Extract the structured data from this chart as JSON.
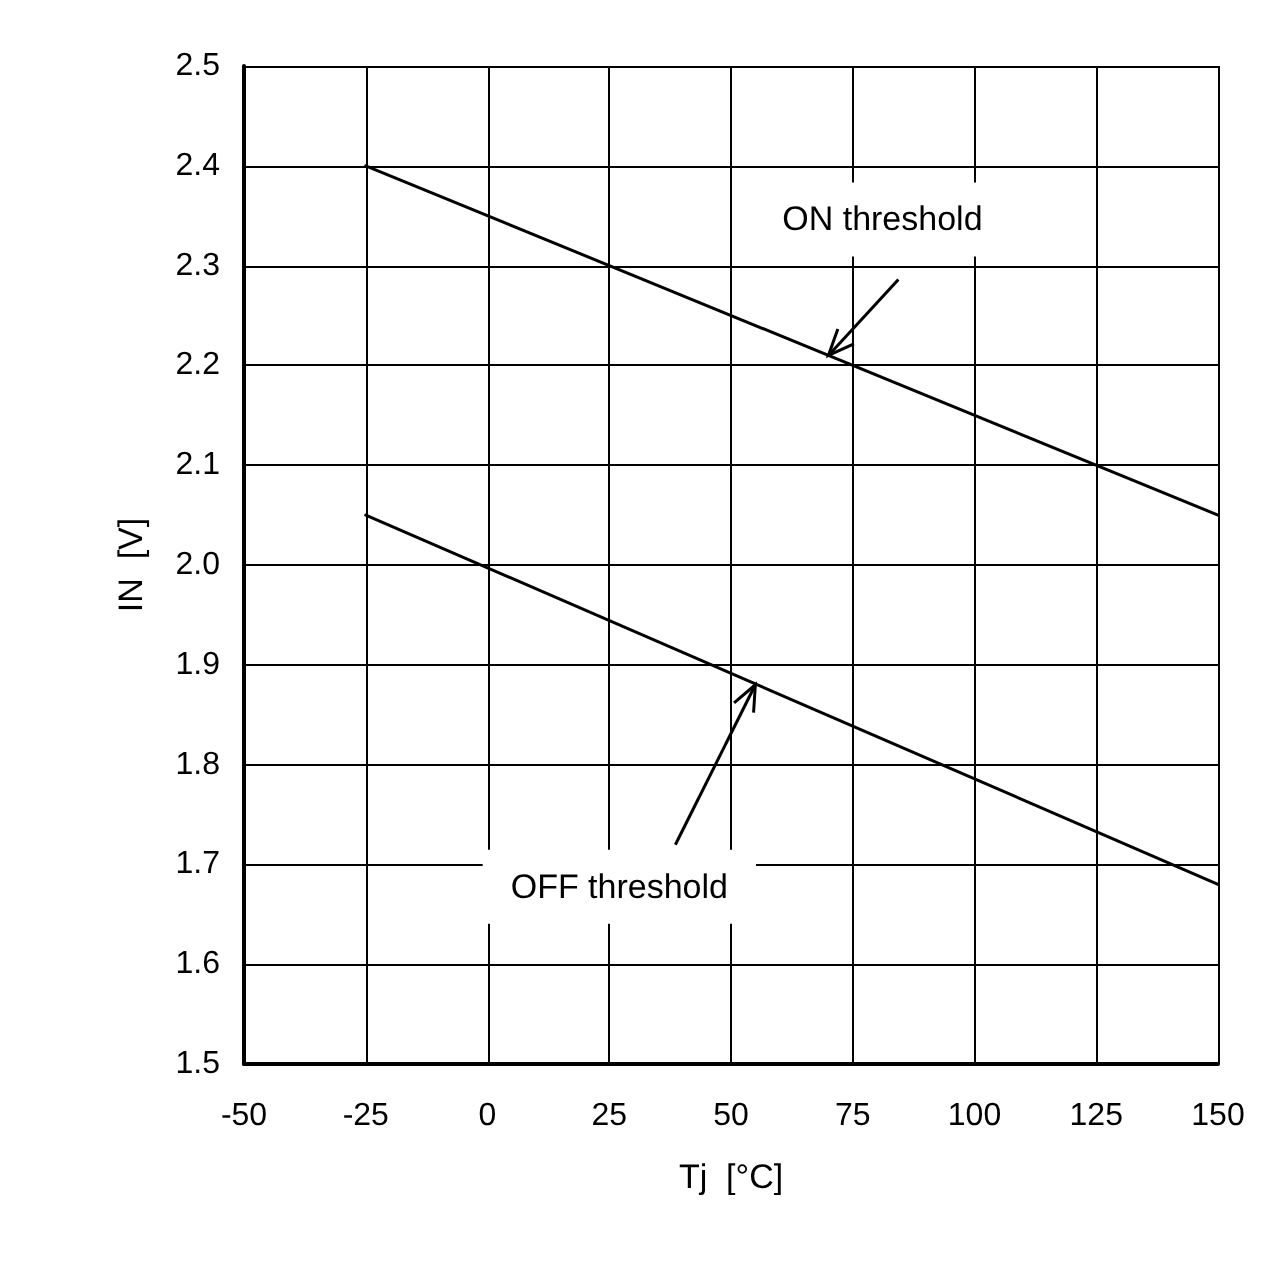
{
  "chart_data": {
    "type": "line",
    "xlabel": "Tj  [°C]",
    "ylabel": "IN  [V]",
    "xlim": [
      -50,
      150
    ],
    "xticks": [
      -50,
      -25,
      0,
      25,
      50,
      75,
      100,
      125,
      150
    ],
    "ylim": [
      1.5,
      2.5
    ],
    "yticks": [
      1.5,
      1.6,
      1.7,
      1.8,
      1.9,
      {
        "value": 2,
        "label": "2.0"
      },
      2.1,
      2.2,
      2.3,
      2.4,
      2.5
    ],
    "grid": true,
    "marker": "none",
    "line_style": "solid",
    "x": [
      -25,
      150
    ],
    "series": [
      {
        "color": "#000000",
        "values": [
          2.4,
          2.05
        ]
      },
      {
        "color": "#000000",
        "values": [
          2.05,
          1.68
        ]
      }
    ],
    "annotations": [
      {
        "text": "ON threshold",
        "x": 70,
        "y": 2.21
      },
      {
        "text": "OFF threshold",
        "x": 55,
        "y": 1.88
      }
    ]
  }
}
